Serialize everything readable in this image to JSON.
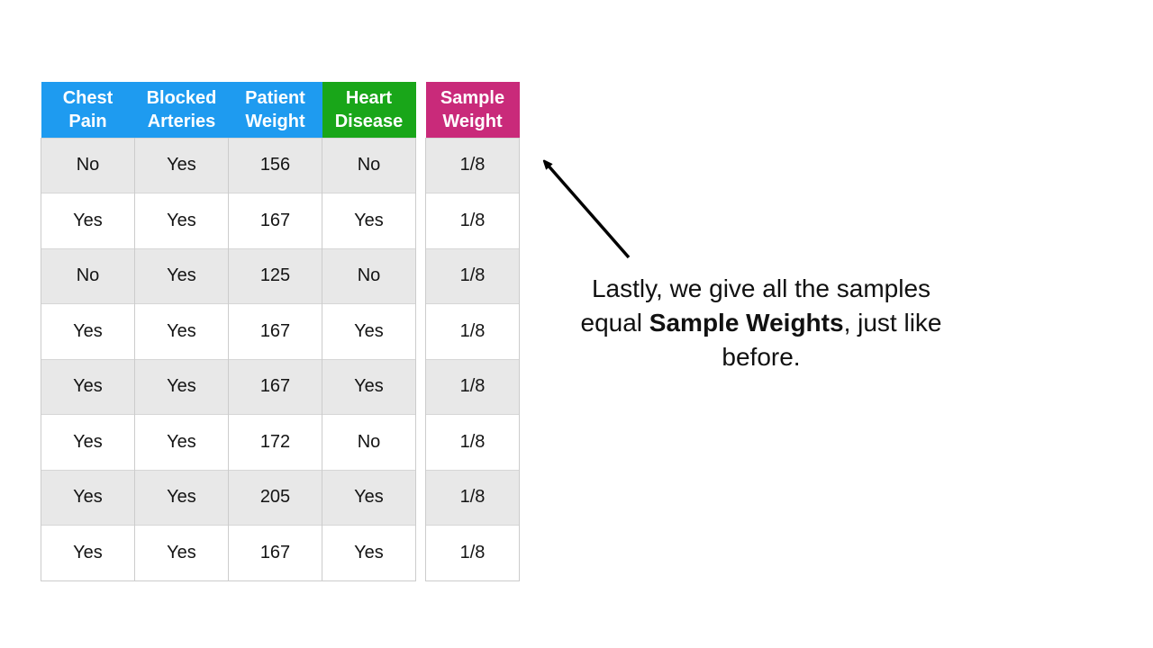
{
  "table": {
    "headers": [
      {
        "line1": "Chest",
        "line2": "Pain",
        "color": "#1e9bf0"
      },
      {
        "line1": "Blocked",
        "line2": "Arteries",
        "color": "#1e9bf0"
      },
      {
        "line1": "Patient",
        "line2": "Weight",
        "color": "#1e9bf0"
      },
      {
        "line1": "Heart",
        "line2": "Disease",
        "color": "#19a619"
      }
    ],
    "rows": [
      [
        "No",
        "Yes",
        "156",
        "No"
      ],
      [
        "Yes",
        "Yes",
        "167",
        "Yes"
      ],
      [
        "No",
        "Yes",
        "125",
        "No"
      ],
      [
        "Yes",
        "Yes",
        "167",
        "Yes"
      ],
      [
        "Yes",
        "Yes",
        "167",
        "Yes"
      ],
      [
        "Yes",
        "Yes",
        "172",
        "No"
      ],
      [
        "Yes",
        "Yes",
        "205",
        "Yes"
      ],
      [
        "Yes",
        "Yes",
        "167",
        "Yes"
      ]
    ]
  },
  "weights": {
    "header": {
      "line1": "Sample",
      "line2": "Weight",
      "color": "#c92a7a"
    },
    "values": [
      "1/8",
      "1/8",
      "1/8",
      "1/8",
      "1/8",
      "1/8",
      "1/8",
      "1/8"
    ]
  },
  "caption": {
    "part1": "Lastly, we give all the samples equal ",
    "bold": "Sample Weights",
    "part2": ", just like before."
  },
  "colors": {
    "arrow": "#000000"
  }
}
